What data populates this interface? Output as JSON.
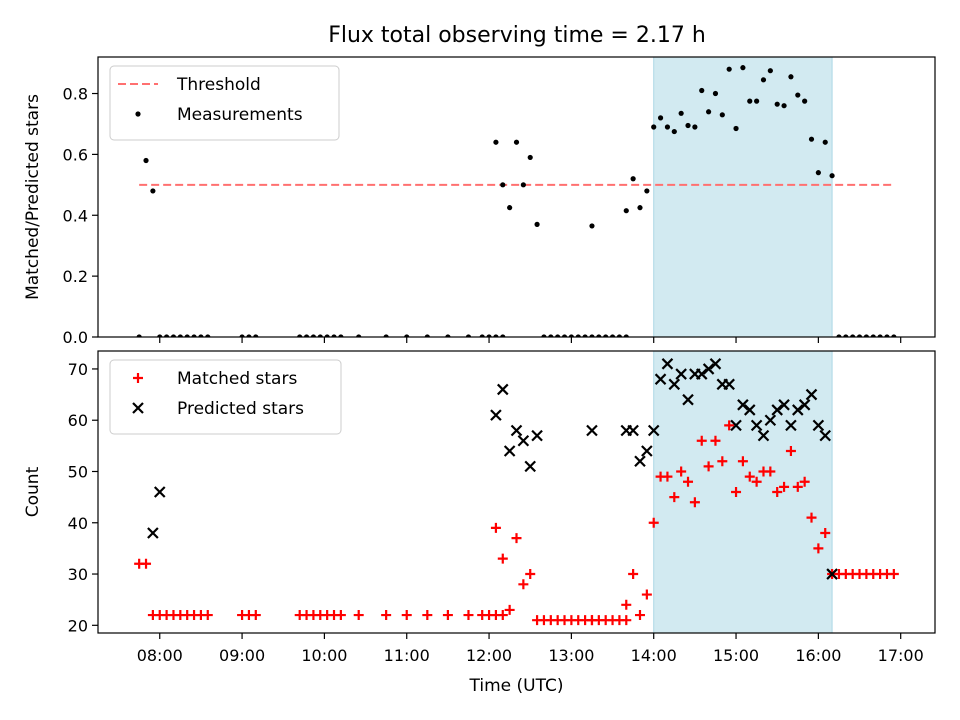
{
  "chart_data": [
    {
      "type": "scatter",
      "title": "Flux total observing time = 2.17 h",
      "xlabel": "",
      "ylabel": "Matched/Predicted stars",
      "xlim": [
        "07:15",
        "17:25"
      ],
      "ylim": [
        0,
        0.92
      ],
      "yticks": [
        0.0,
        0.2,
        0.4,
        0.6,
        0.8
      ],
      "ytick_labels": [
        "0.0",
        "0.2",
        "0.4",
        "0.6",
        "0.8"
      ],
      "highlight_span": {
        "x0": "14:00",
        "x1": "16:10",
        "color": "#add8e6"
      },
      "legend": {
        "placement": "upper left",
        "entries": [
          {
            "label": "Threshold",
            "kind": "dashed-line",
            "color": "#ff7070"
          },
          {
            "label": "Measurements",
            "kind": "dot",
            "color": "#000000"
          }
        ]
      },
      "series": [
        {
          "name": "Threshold",
          "kind": "line",
          "dash": true,
          "color": "#ff7070",
          "x": [
            "07:45",
            "16:55"
          ],
          "y": [
            0.5,
            0.5
          ]
        },
        {
          "name": "Measurements",
          "kind": "dot",
          "color": "#000000",
          "x": [
            "07:45",
            "07:50",
            "07:55",
            "08:00",
            "08:05",
            "08:10",
            "08:15",
            "08:20",
            "08:25",
            "08:30",
            "08:35",
            "09:00",
            "09:05",
            "09:10",
            "09:42",
            "09:47",
            "09:52",
            "09:57",
            "10:02",
            "10:07",
            "10:12",
            "10:25",
            "10:45",
            "11:00",
            "11:15",
            "11:30",
            "11:45",
            "11:55",
            "12:00",
            "12:05",
            "12:10",
            "12:05",
            "12:10",
            "12:15",
            "12:20",
            "12:25",
            "12:30",
            "12:35",
            "12:40",
            "12:45",
            "12:50",
            "12:55",
            "13:00",
            "13:05",
            "13:10",
            "13:15",
            "13:20",
            "13:25",
            "13:30",
            "13:35",
            "13:40",
            "13:15",
            "13:40",
            "13:45",
            "13:50",
            "13:55",
            "14:00",
            "14:05",
            "14:10",
            "14:15",
            "14:20",
            "14:25",
            "14:30",
            "14:35",
            "14:40",
            "14:45",
            "14:50",
            "14:55",
            "15:00",
            "15:05",
            "15:10",
            "15:15",
            "15:20",
            "15:25",
            "15:30",
            "15:35",
            "15:40",
            "15:45",
            "15:50",
            "15:55",
            "16:00",
            "16:05",
            "16:10",
            "16:15",
            "16:20",
            "16:25",
            "16:30",
            "16:35",
            "16:40",
            "16:45",
            "16:50",
            "16:55"
          ],
          "y": [
            0,
            0.58,
            0.48,
            0,
            0,
            0,
            0,
            0,
            0,
            0,
            0,
            0,
            0,
            0,
            0,
            0,
            0,
            0,
            0,
            0,
            0,
            0,
            0,
            0,
            0,
            0,
            0,
            0,
            0,
            0,
            0,
            0.64,
            0.5,
            0.425,
            0.64,
            0.5,
            0.59,
            0.37,
            0,
            0,
            0,
            0,
            0,
            0,
            0,
            0,
            0,
            0,
            0,
            0,
            0,
            0.365,
            0.415,
            0.52,
            0.425,
            0.48,
            0.69,
            0.72,
            0.69,
            0.675,
            0.735,
            0.695,
            0.69,
            0.81,
            0.74,
            0.8,
            0.73,
            0.88,
            0.685,
            0.885,
            0.775,
            0.775,
            0.845,
            0.875,
            0.765,
            0.76,
            0.855,
            0.795,
            0.775,
            0.65,
            0.54,
            0.64,
            0.53,
            0,
            0,
            0,
            0,
            0,
            0,
            0,
            0,
            0
          ]
        }
      ]
    },
    {
      "type": "scatter",
      "title": "",
      "xlabel": "Time (UTC)",
      "ylabel": "Count",
      "xlim": [
        "07:15",
        "17:25"
      ],
      "ylim": [
        18.5,
        73.5
      ],
      "xticks": [
        "08:00",
        "09:00",
        "10:00",
        "11:00",
        "12:00",
        "13:00",
        "14:00",
        "15:00",
        "16:00",
        "17:00"
      ],
      "yticks": [
        20,
        30,
        40,
        50,
        60,
        70
      ],
      "ytick_labels": [
        "20",
        "30",
        "40",
        "50",
        "60",
        "70"
      ],
      "highlight_span": {
        "x0": "14:00",
        "x1": "16:10",
        "color": "#add8e6"
      },
      "legend": {
        "placement": "upper left",
        "entries": [
          {
            "label": "Matched stars",
            "kind": "plus",
            "color": "#ff0000"
          },
          {
            "label": "Predicted stars",
            "kind": "x",
            "color": "#000000"
          }
        ]
      },
      "series": [
        {
          "name": "Matched stars",
          "kind": "plus",
          "color": "#ff0000",
          "x": [
            "07:45",
            "07:50",
            "07:55",
            "08:00",
            "08:05",
            "08:10",
            "08:15",
            "08:20",
            "08:25",
            "08:30",
            "08:35",
            "09:00",
            "09:05",
            "09:10",
            "09:42",
            "09:47",
            "09:52",
            "09:57",
            "10:02",
            "10:07",
            "10:12",
            "10:25",
            "10:45",
            "11:00",
            "11:15",
            "11:30",
            "11:45",
            "11:55",
            "12:00",
            "12:05",
            "12:10",
            "12:05",
            "12:10",
            "12:15",
            "12:20",
            "12:25",
            "12:30",
            "12:35",
            "12:40",
            "12:45",
            "12:50",
            "12:55",
            "13:00",
            "13:05",
            "13:10",
            "13:15",
            "13:20",
            "13:25",
            "13:30",
            "13:35",
            "13:40",
            "13:15",
            "13:40",
            "13:45",
            "13:50",
            "13:55",
            "14:00",
            "14:05",
            "14:10",
            "14:15",
            "14:20",
            "14:25",
            "14:30",
            "14:35",
            "14:40",
            "14:45",
            "14:50",
            "14:55",
            "15:00",
            "15:05",
            "15:10",
            "15:15",
            "15:20",
            "15:25",
            "15:30",
            "15:35",
            "15:40",
            "15:45",
            "15:50",
            "15:55",
            "16:00",
            "16:05",
            "16:10",
            "16:15",
            "16:20",
            "16:25",
            "16:30",
            "16:35",
            "16:40",
            "16:45",
            "16:50",
            "16:55"
          ],
          "y": [
            32,
            32,
            22,
            22,
            22,
            22,
            22,
            22,
            22,
            22,
            22,
            22,
            22,
            22,
            22,
            22,
            22,
            22,
            22,
            22,
            22,
            22,
            22,
            22,
            22,
            22,
            22,
            22,
            22,
            22,
            22,
            39,
            33,
            23,
            37,
            28,
            30,
            21,
            21,
            21,
            21,
            21,
            21,
            21,
            21,
            21,
            21,
            21,
            21,
            21,
            21,
            21,
            24,
            30,
            22,
            26,
            40,
            49,
            49,
            45,
            50,
            48,
            44,
            56,
            51,
            56,
            52,
            59,
            46,
            52,
            49,
            48,
            50,
            50,
            46,
            47,
            54,
            47,
            48,
            41,
            35,
            38,
            30,
            30,
            30,
            30,
            30,
            30,
            30,
            30,
            30,
            30
          ]
        },
        {
          "name": "Predicted stars",
          "kind": "x",
          "color": "#000000",
          "x": [
            "07:55",
            "08:00",
            "12:05",
            "12:10",
            "12:15",
            "12:20",
            "12:25",
            "12:30",
            "12:35",
            "13:15",
            "13:40",
            "13:45",
            "13:50",
            "13:55",
            "14:00",
            "14:05",
            "14:10",
            "14:15",
            "14:20",
            "14:25",
            "14:30",
            "14:35",
            "14:40",
            "14:45",
            "14:50",
            "14:55",
            "15:00",
            "15:05",
            "15:10",
            "15:15",
            "15:20",
            "15:25",
            "15:30",
            "15:35",
            "15:40",
            "15:45",
            "15:50",
            "15:55",
            "16:00",
            "16:05",
            "16:10"
          ],
          "y": [
            38,
            46,
            61,
            66,
            54,
            58,
            56,
            51,
            57,
            58,
            58,
            58,
            52,
            54,
            58,
            68,
            71,
            67,
            69,
            64,
            69,
            69,
            70,
            71,
            67,
            67,
            59,
            63,
            62,
            59,
            57,
            60,
            62,
            63,
            59,
            62,
            63,
            65,
            59,
            57,
            30
          ]
        }
      ]
    }
  ]
}
